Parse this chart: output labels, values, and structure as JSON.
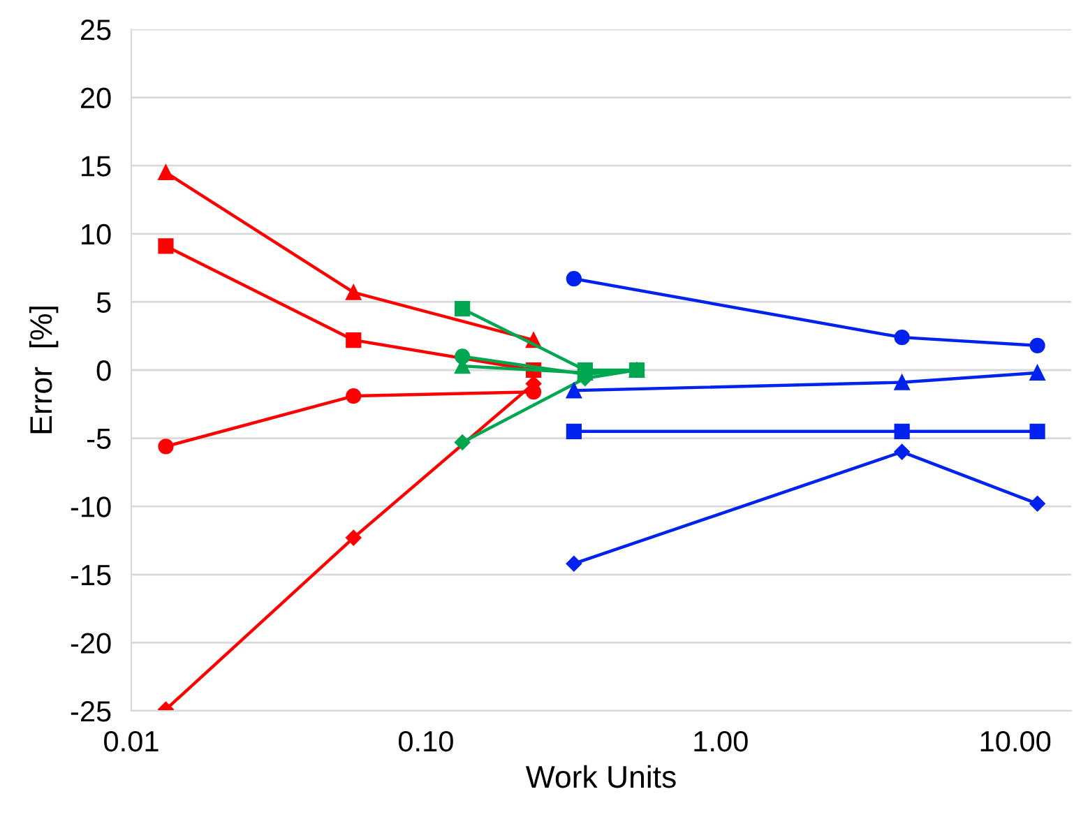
{
  "chart_data": {
    "type": "line",
    "xlabel": "Work Units",
    "ylabel": "Error  [%]",
    "log": "x",
    "grid": "y",
    "xlim": [
      0.01,
      15.5
    ],
    "xticks": [
      {
        "value": 0.01,
        "label": "0.01"
      },
      {
        "value": 0.1,
        "label": "0.10"
      },
      {
        "value": 1,
        "label": "1.00"
      },
      {
        "value": 10,
        "label": "10.00"
      }
    ],
    "ylim": [
      -25,
      25
    ],
    "yticks": [
      -25,
      -20,
      -15,
      -10,
      -5,
      0,
      5,
      10,
      15,
      20,
      25
    ],
    "series": [
      {
        "color": "#ff0000",
        "marker": "triangle",
        "x": [
          0.0131,
          0.0568,
          0.232
        ],
        "values": [
          14.5,
          5.7,
          2.2
        ]
      },
      {
        "color": "#ff0000",
        "marker": "square",
        "x": [
          0.0131,
          0.0568,
          0.232
        ],
        "values": [
          9.1,
          2.2,
          0
        ]
      },
      {
        "color": "#ff0000",
        "marker": "circle",
        "x": [
          0.0131,
          0.0568,
          0.232
        ],
        "values": [
          -5.6,
          -1.9,
          -1.6
        ]
      },
      {
        "color": "#ff0000",
        "marker": "diamond",
        "x": [
          0.0131,
          0.0568,
          0.232
        ],
        "values": [
          -24.9,
          -12.3,
          -1.0
        ]
      },
      {
        "color": "#00a650",
        "marker": "square",
        "x": [
          0.133,
          0.347,
          0.52
        ],
        "values": [
          4.5,
          0,
          0
        ]
      },
      {
        "color": "#00a650",
        "marker": "circle",
        "x": [
          0.133,
          0.347,
          0.52
        ],
        "values": [
          1.0,
          -0.3,
          0
        ]
      },
      {
        "color": "#00a650",
        "marker": "triangle",
        "x": [
          0.133,
          0.347,
          0.52
        ],
        "values": [
          0.3,
          -0.2,
          0
        ]
      },
      {
        "color": "#00a650",
        "marker": "diamond",
        "x": [
          0.133,
          0.347,
          0.52
        ],
        "values": [
          -5.3,
          -0.6,
          0
        ]
      },
      {
        "color": "#0022ee",
        "marker": "circle",
        "x": [
          0.318,
          4.13,
          11.9
        ],
        "values": [
          6.7,
          2.4,
          1.8
        ]
      },
      {
        "color": "#0022ee",
        "marker": "triangle",
        "x": [
          0.318,
          4.13,
          11.9
        ],
        "values": [
          -1.5,
          -0.9,
          -0.2
        ]
      },
      {
        "color": "#0022ee",
        "marker": "square",
        "x": [
          0.318,
          4.13,
          11.9
        ],
        "values": [
          -4.5,
          -4.5,
          -4.5
        ]
      },
      {
        "color": "#0022ee",
        "marker": "diamond",
        "x": [
          0.318,
          4.13,
          11.9
        ],
        "values": [
          -14.2,
          -6.0,
          -9.8
        ]
      }
    ]
  }
}
